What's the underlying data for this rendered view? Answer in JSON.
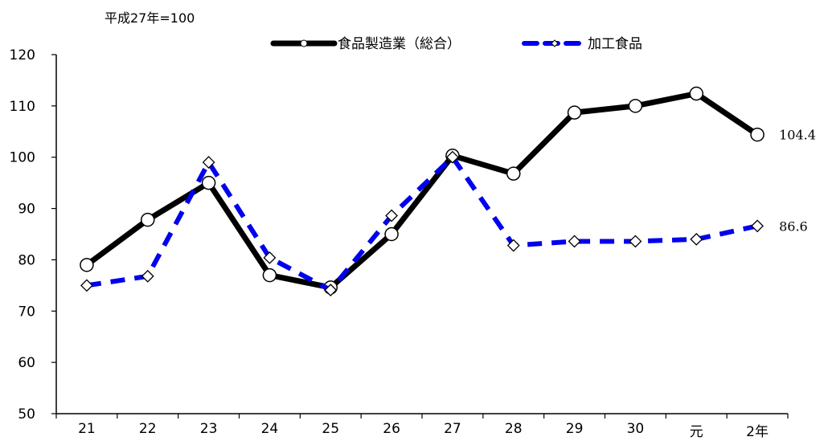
{
  "unit_label": "平成27年=100",
  "chart_data": {
    "type": "line",
    "categories": [
      "21",
      "22",
      "23",
      "24",
      "25",
      "26",
      "27",
      "28",
      "29",
      "30",
      "元",
      "2年"
    ],
    "ylim": [
      50,
      120
    ],
    "yticks": [
      50,
      60,
      70,
      80,
      90,
      100,
      110,
      120
    ],
    "grid": false,
    "legend_position": "top",
    "series": [
      {
        "name": "食品製造業（総合）",
        "color": "#000000",
        "line_style": "solid",
        "marker": "circle",
        "values": [
          79.0,
          87.8,
          95.0,
          77.0,
          74.6,
          85.0,
          100.3,
          96.8,
          108.7,
          110.0,
          112.4,
          104.4
        ],
        "end_label": "104.4"
      },
      {
        "name": "加工食品",
        "color": "#0000ee",
        "line_style": "dashed",
        "marker": "diamond",
        "values": [
          75.0,
          76.8,
          99.0,
          80.4,
          74.1,
          88.6,
          100.0,
          82.8,
          83.6,
          83.6,
          84.0,
          86.6
        ],
        "end_label": "86.6"
      }
    ]
  }
}
